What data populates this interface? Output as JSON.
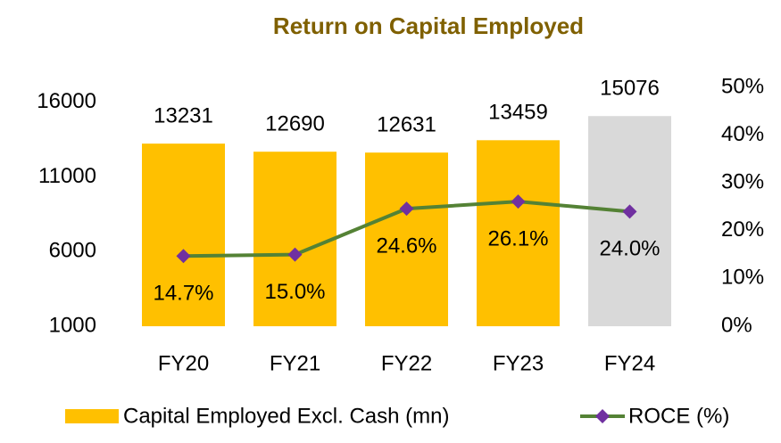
{
  "chart_data": {
    "type": "bar_line",
    "title": "Return on Capital Employed",
    "categories": [
      "FY20",
      "FY21",
      "FY22",
      "FY23",
      "FY24"
    ],
    "series": [
      {
        "name": "Capital Employed Excl. Cash (mn)",
        "type": "bar",
        "color": "#ffc000",
        "point_colors": [
          "#ffc000",
          "#ffc000",
          "#ffc000",
          "#ffc000",
          "#d9d9d9"
        ],
        "values": [
          13231,
          12690,
          12631,
          13459,
          15076
        ]
      },
      {
        "name": "ROCE (%)",
        "type": "line",
        "axis": "y2",
        "color": "#548235",
        "marker_color": "#7030a0",
        "values": [
          14.7,
          15.0,
          24.6,
          26.1,
          24.0
        ],
        "value_labels": [
          "14.7%",
          "15.0%",
          "24.6%",
          "26.1%",
          "24.0%"
        ]
      }
    ],
    "ylim": [
      1000,
      17000
    ],
    "yticks": [
      1000,
      6000,
      11000,
      16000
    ],
    "y2lim": [
      0,
      50
    ],
    "y2ticks": [
      {
        "value": 0,
        "label": "0%"
      },
      {
        "value": 10,
        "label": "10%"
      },
      {
        "value": 20,
        "label": "20%"
      },
      {
        "value": 30,
        "label": "30%"
      },
      {
        "value": 40,
        "label": "40%"
      },
      {
        "value": 50,
        "label": "50%"
      }
    ],
    "grid": false,
    "legend": "bottom"
  }
}
